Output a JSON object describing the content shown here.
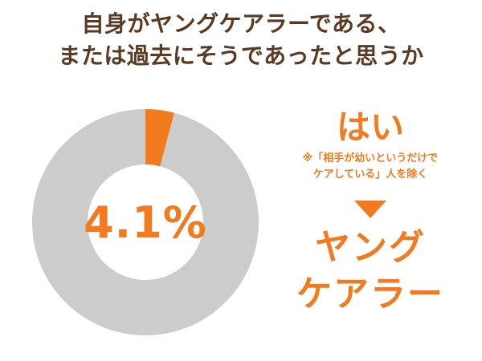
{
  "title": {
    "line1": "自身がヤングケアラーである、",
    "line2": "または過去にそうであったと思うか"
  },
  "answer": {
    "label": "はい",
    "note_line1": "※「相手が幼いというだけで",
    "note_line2": "ケアしている」人を除く",
    "result_line1": "ヤング",
    "result_line2": "ケアラー"
  },
  "colors": {
    "accent": "#f47a1f",
    "rest": "#cccccc",
    "title": "#5a3a22"
  },
  "chart_data": {
    "type": "pie",
    "donut": true,
    "center_label": "4.1%",
    "slices": [
      {
        "label": "はい",
        "value": 4.1,
        "color": "#f47a1f"
      },
      {
        "label": "",
        "value": 95.9,
        "color": "#cccccc"
      }
    ]
  }
}
